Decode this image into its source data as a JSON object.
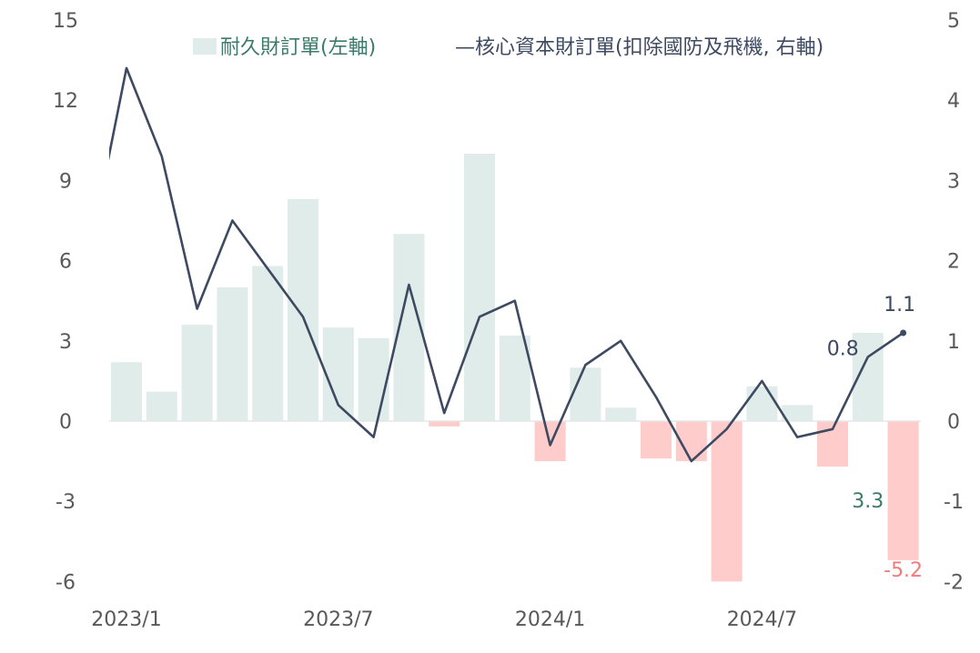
{
  "chart_data": {
    "type": "bar+line",
    "title": "",
    "categories": [
      "2023/1",
      "2023/2",
      "2023/3",
      "2023/4",
      "2023/5",
      "2023/6",
      "2023/7",
      "2023/8",
      "2023/9",
      "2023/10",
      "2023/11",
      "2023/12",
      "2024/1",
      "2024/2",
      "2024/3",
      "2024/4",
      "2024/5",
      "2024/6",
      "2024/7",
      "2024/8",
      "2024/9",
      "2024/10",
      "2024/11"
    ],
    "x_tick_labels": [
      "2023/1",
      "2023/7",
      "2024/1",
      "2024/7"
    ],
    "series": [
      {
        "name": "耐久財訂單(左軸)",
        "type": "bar",
        "axis": "left",
        "values": [
          2.2,
          1.1,
          3.6,
          5.0,
          5.8,
          8.3,
          3.5,
          3.1,
          7.0,
          -0.2,
          10.0,
          3.2,
          -1.5,
          2.0,
          0.5,
          -1.4,
          -1.5,
          -6.0,
          1.3,
          0.6,
          -1.7,
          3.3,
          -5.2
        ]
      },
      {
        "name": "核心資本財訂單(扣除國防及飛機, 右軸)",
        "type": "line",
        "axis": "right",
        "prior_value": 2.2,
        "values": [
          4.4,
          3.3,
          1.4,
          2.5,
          1.9,
          1.3,
          0.2,
          -0.2,
          1.7,
          0.1,
          1.3,
          1.5,
          -0.3,
          0.7,
          1.0,
          0.3,
          -0.5,
          -0.1,
          0.5,
          -0.2,
          -0.1,
          0.8,
          1.1
        ]
      }
    ],
    "legend": {
      "bar_label": "耐久財訂單(左軸)",
      "line_label": "—核心資本財訂單(扣除國防及飛機, 右軸)",
      "placement": "top"
    },
    "left_axis": {
      "ylim": [
        -6,
        15
      ],
      "ticks": [
        "15",
        "12",
        "9",
        "6",
        "3",
        "0",
        "-3",
        "-6"
      ]
    },
    "right_axis": {
      "ylim": [
        -2,
        5
      ],
      "ticks": [
        "5",
        "4",
        "3",
        "2",
        "1",
        "0",
        "-1",
        "-2"
      ]
    },
    "annotations": [
      {
        "text": "0.8",
        "series": 1,
        "index": 21
      },
      {
        "text": "1.1",
        "series": 1,
        "index": 22
      },
      {
        "text": "3.3",
        "series": 0,
        "index": 21
      },
      {
        "text": "-5.2",
        "series": 0,
        "index": 22
      }
    ],
    "colors": {
      "bar_pos": "#dfecea",
      "bar_neg": "#ffcccc",
      "line": "#3e4a61",
      "bar_label": "#3d7a6c",
      "neg_label": "#f47a7a",
      "tick": "#595959"
    }
  }
}
